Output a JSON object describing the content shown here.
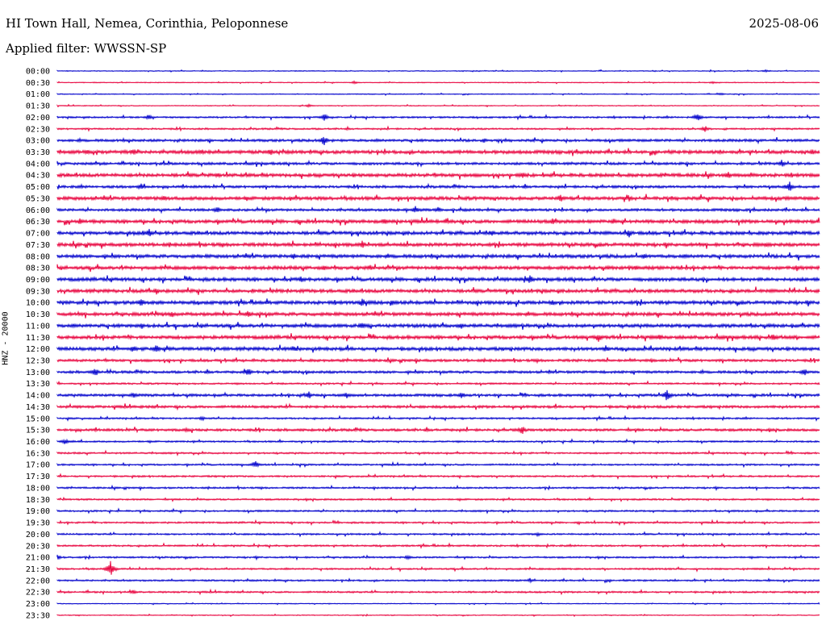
{
  "header": {
    "station": "HI Town Hall, Nemea, Corinthia, Peloponnese",
    "date": "2025-08-06",
    "filter": "Applied filter: WWSSN-SP"
  },
  "chart_data": {
    "type": "line",
    "title": "HI Town Hall, Nemea, Corinthia, Peloponnese",
    "ylabel": "HNZ - 20000",
    "xlabel": "",
    "row_labels": [
      "00:00",
      "00:30",
      "01:00",
      "01:30",
      "02:00",
      "02:30",
      "03:00",
      "03:30",
      "04:00",
      "04:30",
      "05:00",
      "05:30",
      "06:00",
      "06:30",
      "07:00",
      "07:30",
      "08:00",
      "08:30",
      "09:00",
      "09:30",
      "10:00",
      "10:30",
      "11:00",
      "11:30",
      "12:00",
      "12:30",
      "13:00",
      "13:30",
      "14:00",
      "14:30",
      "15:00",
      "15:30",
      "16:00",
      "16:30",
      "17:00",
      "17:30",
      "18:00",
      "18:30",
      "19:00",
      "19:30",
      "20:00",
      "20:30",
      "21:00",
      "21:30",
      "22:00",
      "22:30",
      "23:00",
      "23:30"
    ],
    "colors": [
      "#0000cc",
      "#e8003c"
    ],
    "noise_level": [
      1,
      1,
      1,
      1,
      2,
      2,
      3,
      4,
      3,
      4,
      3,
      4,
      3,
      4,
      4,
      4,
      4,
      4,
      4,
      4,
      4,
      4,
      4,
      4,
      4,
      3,
      3,
      2,
      3,
      3,
      2,
      3,
      2,
      2,
      2,
      2,
      2,
      2,
      2,
      2,
      2,
      2,
      2,
      2,
      2,
      2,
      1,
      1
    ],
    "events": [
      [
        [
          0.93,
          2
        ]
      ],
      [
        [
          0.39,
          2
        ],
        [
          0.86,
          2
        ]
      ],
      [
        [
          0.87,
          2
        ]
      ],
      [
        [
          0.33,
          2
        ]
      ],
      [
        [
          0.12,
          4
        ],
        [
          0.35,
          5
        ],
        [
          0.84,
          6
        ]
      ],
      [
        [
          0.85,
          4
        ]
      ],
      [
        [
          0.35,
          7
        ],
        [
          0.56,
          3
        ]
      ],
      [
        [
          0.04,
          4
        ],
        [
          0.1,
          5
        ],
        [
          0.19,
          4
        ],
        [
          0.28,
          5
        ],
        [
          0.99,
          4
        ]
      ],
      [
        [
          0.95,
          5
        ]
      ],
      [
        [
          0.21,
          4
        ],
        [
          0.61,
          5
        ],
        [
          0.88,
          5
        ]
      ],
      [
        [
          0.11,
          5
        ],
        [
          0.96,
          8
        ]
      ],
      [
        [
          0.14,
          4
        ],
        [
          0.66,
          6
        ],
        [
          0.75,
          5
        ]
      ],
      [
        [
          0.21,
          5
        ],
        [
          0.47,
          5
        ],
        [
          0.5,
          4
        ]
      ],
      [
        [
          0.03,
          4
        ],
        [
          0.43,
          5
        ],
        [
          0.51,
          4
        ],
        [
          0.65,
          4
        ],
        [
          0.73,
          4
        ]
      ],
      [
        [
          0.12,
          6
        ],
        [
          0.57,
          4
        ],
        [
          0.75,
          6
        ]
      ],
      [
        [
          0.4,
          5
        ],
        [
          0.93,
          4
        ]
      ],
      [
        [
          0.31,
          4
        ],
        [
          0.77,
          5
        ]
      ],
      [
        [
          0.23,
          4
        ],
        [
          0.35,
          5
        ],
        [
          0.41,
          4
        ],
        [
          0.5,
          4
        ],
        [
          0.76,
          4
        ],
        [
          0.97,
          4
        ]
      ],
      [
        [
          0.32,
          4
        ],
        [
          0.62,
          7
        ]
      ],
      [
        [
          0.13,
          5
        ]
      ],
      [
        [
          0.11,
          5
        ],
        [
          0.4,
          6
        ],
        [
          0.44,
          4
        ],
        [
          0.65,
          4
        ]
      ],
      [
        [
          0.15,
          5
        ],
        [
          0.25,
          5
        ]
      ],
      [
        [
          0.11,
          4
        ],
        [
          0.4,
          6
        ],
        [
          0.53,
          5
        ]
      ],
      [
        [
          0.71,
          6
        ],
        [
          0.79,
          4
        ],
        [
          0.94,
          6
        ]
      ],
      [
        [
          0.1,
          5
        ],
        [
          0.13,
          6
        ],
        [
          0.31,
          4
        ],
        [
          0.72,
          5
        ]
      ],
      [
        [
          0.78,
          3
        ]
      ],
      [
        [
          0.05,
          6
        ],
        [
          0.25,
          6
        ],
        [
          0.98,
          5
        ]
      ],
      [],
      [
        [
          0.1,
          4
        ],
        [
          0.33,
          5
        ],
        [
          0.38,
          4
        ],
        [
          0.53,
          5
        ],
        [
          0.8,
          8
        ]
      ],
      [],
      [
        [
          0.19,
          3
        ]
      ],
      [
        [
          0.17,
          3
        ],
        [
          0.61,
          6
        ]
      ],
      [
        [
          0.01,
          4
        ]
      ],
      [],
      [
        [
          0.26,
          5
        ]
      ],
      [],
      [],
      [],
      [],
      [],
      [
        [
          0.63,
          3
        ]
      ],
      [],
      [
        [
          0.0,
          4
        ],
        [
          0.46,
          3
        ]
      ],
      [
        [
          0.07,
          11
        ]
      ],
      [
        [
          0.62,
          3
        ]
      ],
      [
        [
          0.1,
          3
        ]
      ],
      [],
      []
    ]
  }
}
